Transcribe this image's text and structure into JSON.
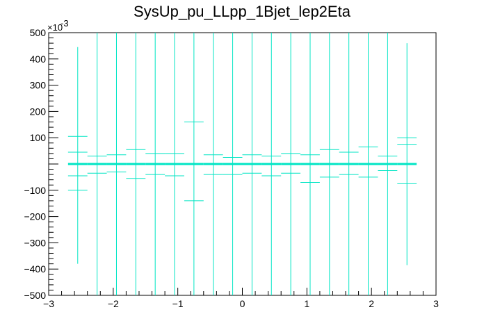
{
  "chart_data": {
    "type": "scatter",
    "title": "SysUp_pu_LLpp_1Bjet_lep2Eta",
    "xlabel": "",
    "ylabel": "",
    "xlim": [
      -3,
      3
    ],
    "ylim": [
      -500,
      500
    ],
    "y_exponent_label": "×10",
    "y_exponent_power": "-3",
    "x_ticks": [
      {
        "value": -3,
        "label": "−3"
      },
      {
        "value": -2,
        "label": "−2"
      },
      {
        "value": -1,
        "label": "−1"
      },
      {
        "value": 0,
        "label": "0"
      },
      {
        "value": 1,
        "label": "1"
      },
      {
        "value": 2,
        "label": "2"
      },
      {
        "value": 3,
        "label": "3"
      }
    ],
    "y_ticks": [
      {
        "value": -500,
        "label": "−500"
      },
      {
        "value": -400,
        "label": "−400"
      },
      {
        "value": -300,
        "label": "−300"
      },
      {
        "value": -200,
        "label": "−200"
      },
      {
        "value": -100,
        "label": "−100"
      },
      {
        "value": 100,
        "label": "100"
      },
      {
        "value": 200,
        "label": "200"
      },
      {
        "value": 300,
        "label": "300"
      },
      {
        "value": 400,
        "label": "400"
      },
      {
        "value": 500,
        "label": "500"
      }
    ],
    "grid": false,
    "legend": "none",
    "series": [
      {
        "color": "#00e5c4",
        "points": [
          {
            "x": -2.55,
            "xerr": 0.15,
            "y": 0,
            "ylo": -380,
            "yhi": 445
          },
          {
            "x": -2.55,
            "xerr": 0.15,
            "y": 105,
            "ylo": 105,
            "yhi": 105
          },
          {
            "x": -2.55,
            "xerr": 0.15,
            "y": -100,
            "ylo": -100,
            "yhi": -100
          },
          {
            "x": -2.55,
            "xerr": 0.15,
            "y": 45,
            "ylo": 45,
            "yhi": 45
          },
          {
            "x": -2.55,
            "xerr": 0.15,
            "y": -45,
            "ylo": -45,
            "yhi": -45
          },
          {
            "x": -2.25,
            "xerr": 0.15,
            "y": 0,
            "ylo": -500,
            "yhi": 500
          },
          {
            "x": -2.25,
            "xerr": 0.15,
            "y": 30,
            "ylo": 30,
            "yhi": 30
          },
          {
            "x": -2.25,
            "xerr": 0.15,
            "y": -35,
            "ylo": -35,
            "yhi": -35
          },
          {
            "x": -1.95,
            "xerr": 0.15,
            "y": 0,
            "ylo": -500,
            "yhi": 500
          },
          {
            "x": -1.95,
            "xerr": 0.15,
            "y": 35,
            "ylo": 35,
            "yhi": 35
          },
          {
            "x": -1.95,
            "xerr": 0.15,
            "y": -30,
            "ylo": -30,
            "yhi": -30
          },
          {
            "x": -1.65,
            "xerr": 0.15,
            "y": 0,
            "ylo": -500,
            "yhi": 500
          },
          {
            "x": -1.65,
            "xerr": 0.15,
            "y": 55,
            "ylo": 55,
            "yhi": 55
          },
          {
            "x": -1.65,
            "xerr": 0.15,
            "y": -55,
            "ylo": -55,
            "yhi": -55
          },
          {
            "x": -1.35,
            "xerr": 0.15,
            "y": 0,
            "ylo": -500,
            "yhi": 500
          },
          {
            "x": -1.35,
            "xerr": 0.15,
            "y": 40,
            "ylo": 40,
            "yhi": 40
          },
          {
            "x": -1.35,
            "xerr": 0.15,
            "y": -40,
            "ylo": -40,
            "yhi": -40
          },
          {
            "x": -1.05,
            "xerr": 0.15,
            "y": 0,
            "ylo": -500,
            "yhi": 500
          },
          {
            "x": -1.05,
            "xerr": 0.15,
            "y": 40,
            "ylo": 40,
            "yhi": 40
          },
          {
            "x": -1.05,
            "xerr": 0.15,
            "y": -45,
            "ylo": -45,
            "yhi": -45
          },
          {
            "x": -0.75,
            "xerr": 0.15,
            "y": 0,
            "ylo": -500,
            "yhi": 500
          },
          {
            "x": -0.75,
            "xerr": 0.15,
            "y": 160,
            "ylo": 160,
            "yhi": 160
          },
          {
            "x": -0.75,
            "xerr": 0.15,
            "y": -140,
            "ylo": -140,
            "yhi": -140
          },
          {
            "x": -0.45,
            "xerr": 0.15,
            "y": 0,
            "ylo": -500,
            "yhi": 500
          },
          {
            "x": -0.45,
            "xerr": 0.15,
            "y": 35,
            "ylo": 35,
            "yhi": 35
          },
          {
            "x": -0.45,
            "xerr": 0.15,
            "y": -40,
            "ylo": -40,
            "yhi": -40
          },
          {
            "x": -0.15,
            "xerr": 0.15,
            "y": 0,
            "ylo": -500,
            "yhi": 500
          },
          {
            "x": -0.15,
            "xerr": 0.15,
            "y": 25,
            "ylo": 25,
            "yhi": 25
          },
          {
            "x": -0.15,
            "xerr": 0.15,
            "y": -40,
            "ylo": -40,
            "yhi": -40
          },
          {
            "x": 0.15,
            "xerr": 0.15,
            "y": 0,
            "ylo": -500,
            "yhi": 500
          },
          {
            "x": 0.15,
            "xerr": 0.15,
            "y": 35,
            "ylo": 35,
            "yhi": 35
          },
          {
            "x": 0.15,
            "xerr": 0.15,
            "y": -35,
            "ylo": -35,
            "yhi": -35
          },
          {
            "x": 0.45,
            "xerr": 0.15,
            "y": 0,
            "ylo": -500,
            "yhi": 500
          },
          {
            "x": 0.45,
            "xerr": 0.15,
            "y": 30,
            "ylo": 30,
            "yhi": 30
          },
          {
            "x": 0.45,
            "xerr": 0.15,
            "y": -45,
            "ylo": -45,
            "yhi": -45
          },
          {
            "x": 0.75,
            "xerr": 0.15,
            "y": 0,
            "ylo": -500,
            "yhi": 500
          },
          {
            "x": 0.75,
            "xerr": 0.15,
            "y": 40,
            "ylo": 40,
            "yhi": 40
          },
          {
            "x": 0.75,
            "xerr": 0.15,
            "y": -35,
            "ylo": -35,
            "yhi": -35
          },
          {
            "x": 1.05,
            "xerr": 0.15,
            "y": 0,
            "ylo": -500,
            "yhi": 500
          },
          {
            "x": 1.05,
            "xerr": 0.15,
            "y": 35,
            "ylo": 35,
            "yhi": 35
          },
          {
            "x": 1.05,
            "xerr": 0.15,
            "y": -70,
            "ylo": -70,
            "yhi": -70
          },
          {
            "x": 1.35,
            "xerr": 0.15,
            "y": 0,
            "ylo": -500,
            "yhi": 500
          },
          {
            "x": 1.35,
            "xerr": 0.15,
            "y": 55,
            "ylo": 55,
            "yhi": 55
          },
          {
            "x": 1.35,
            "xerr": 0.15,
            "y": -50,
            "ylo": -50,
            "yhi": -50
          },
          {
            "x": 1.65,
            "xerr": 0.15,
            "y": 0,
            "ylo": -500,
            "yhi": 500
          },
          {
            "x": 1.65,
            "xerr": 0.15,
            "y": 45,
            "ylo": 45,
            "yhi": 45
          },
          {
            "x": 1.65,
            "xerr": 0.15,
            "y": -40,
            "ylo": -40,
            "yhi": -40
          },
          {
            "x": 1.95,
            "xerr": 0.15,
            "y": 0,
            "ylo": -500,
            "yhi": 500
          },
          {
            "x": 1.95,
            "xerr": 0.15,
            "y": 65,
            "ylo": 65,
            "yhi": 65
          },
          {
            "x": 1.95,
            "xerr": 0.15,
            "y": -50,
            "ylo": -50,
            "yhi": -50
          },
          {
            "x": 2.25,
            "xerr": 0.15,
            "y": 0,
            "ylo": -500,
            "yhi": 500
          },
          {
            "x": 2.25,
            "xerr": 0.15,
            "y": 30,
            "ylo": 30,
            "yhi": 30
          },
          {
            "x": 2.25,
            "xerr": 0.15,
            "y": -25,
            "ylo": -25,
            "yhi": -25
          },
          {
            "x": 2.55,
            "xerr": 0.15,
            "y": 0,
            "ylo": -385,
            "yhi": 460
          },
          {
            "x": 2.55,
            "xerr": 0.15,
            "y": 100,
            "ylo": 100,
            "yhi": 100
          },
          {
            "x": 2.55,
            "xerr": 0.15,
            "y": 75,
            "ylo": 75,
            "yhi": 75
          },
          {
            "x": 2.55,
            "xerr": 0.15,
            "y": -75,
            "ylo": -75,
            "yhi": -75
          }
        ]
      }
    ]
  }
}
